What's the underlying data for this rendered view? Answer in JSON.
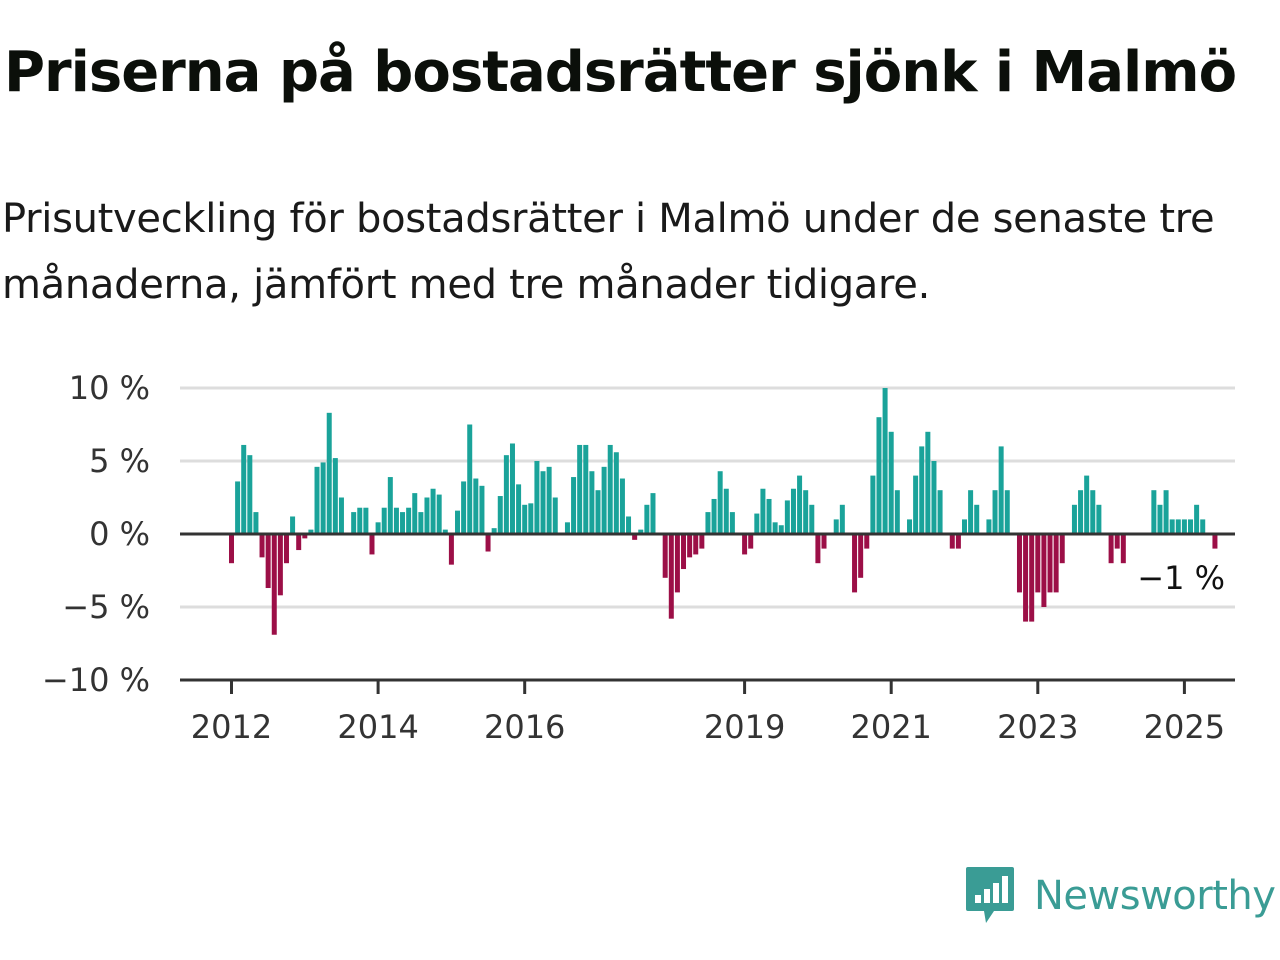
{
  "header": {
    "title": "Priserna på bostadsrätter sjönk i Malmö",
    "subtitle": "Prisutveckling för bostadsrätter i Malmö under de senaste tre månaderna, jämfört med tre månader tidigare."
  },
  "brand": {
    "name": "Newsworthy",
    "icon": "newsworthy-logo-icon",
    "color": "#3a9c95"
  },
  "colors": {
    "positive": "#1aa39a",
    "negative": "#9c0f47",
    "grid": "#dddddd",
    "axis": "#333333"
  },
  "chart_data": {
    "type": "bar",
    "title": "Priserna på bostadsrätter sjönk i Malmö",
    "ylabel": "",
    "xlabel": "",
    "ylim": [
      -10,
      10
    ],
    "y_ticks": [
      10,
      5,
      0,
      -5,
      -10
    ],
    "y_tick_labels": [
      "10 %",
      "5 %",
      "0 %",
      "−5 %",
      "−10 %"
    ],
    "x_ticks": [
      2012,
      2014,
      2016,
      2019,
      2021,
      2023,
      2025
    ],
    "x_tick_labels": [
      "2012",
      "2014",
      "2016",
      "2019",
      "2021",
      "2023",
      "2025"
    ],
    "grid": true,
    "series_start": "2012-01",
    "frequency": "monthly",
    "last_value_label": "−1 %",
    "values": [
      -2,
      3.6,
      6.1,
      5.4,
      1.5,
      -1.6,
      -3.7,
      -6.9,
      -4.2,
      -2,
      1.2,
      -1.1,
      -0.3,
      0.3,
      4.6,
      4.9,
      8.3,
      5.2,
      2.5,
      0,
      1.5,
      1.8,
      1.8,
      -1.4,
      0.8,
      1.8,
      3.9,
      1.8,
      1.5,
      1.8,
      2.8,
      1.5,
      2.5,
      3.1,
      2.7,
      0.3,
      -2.1,
      1.6,
      3.6,
      7.5,
      3.8,
      3.3,
      -1.2,
      0.4,
      2.6,
      5.4,
      6.2,
      3.4,
      2,
      2.1,
      5,
      4.3,
      4.6,
      2.5,
      0,
      0.8,
      3.9,
      6.1,
      6.1,
      4.3,
      3,
      4.6,
      6.1,
      5.6,
      3.8,
      1.2,
      -0.4,
      0.3,
      2,
      2.8,
      0,
      -3,
      -5.8,
      -4,
      -2.4,
      -1.6,
      -1.4,
      -1,
      1.5,
      2.4,
      4.3,
      3.1,
      1.5,
      0,
      -1.4,
      -1,
      1.4,
      3.1,
      2.4,
      0.8,
      0.6,
      2.3,
      3.1,
      4,
      3,
      2,
      -2,
      -1,
      0,
      1,
      2,
      0,
      -4,
      -3,
      -1,
      4,
      8,
      10,
      7,
      3,
      0,
      1,
      4,
      6,
      7,
      5,
      3,
      0,
      -1,
      -1,
      1,
      3,
      2,
      0,
      1,
      3,
      6,
      3,
      0,
      -4,
      -6,
      -6,
      -4,
      -5,
      -4,
      -4,
      -2,
      0,
      2,
      3,
      4,
      3,
      2,
      0,
      -2,
      -1,
      -2,
      0,
      0,
      0,
      0,
      3,
      2,
      3,
      1,
      1,
      1,
      1,
      2,
      1,
      0,
      -1
    ]
  }
}
